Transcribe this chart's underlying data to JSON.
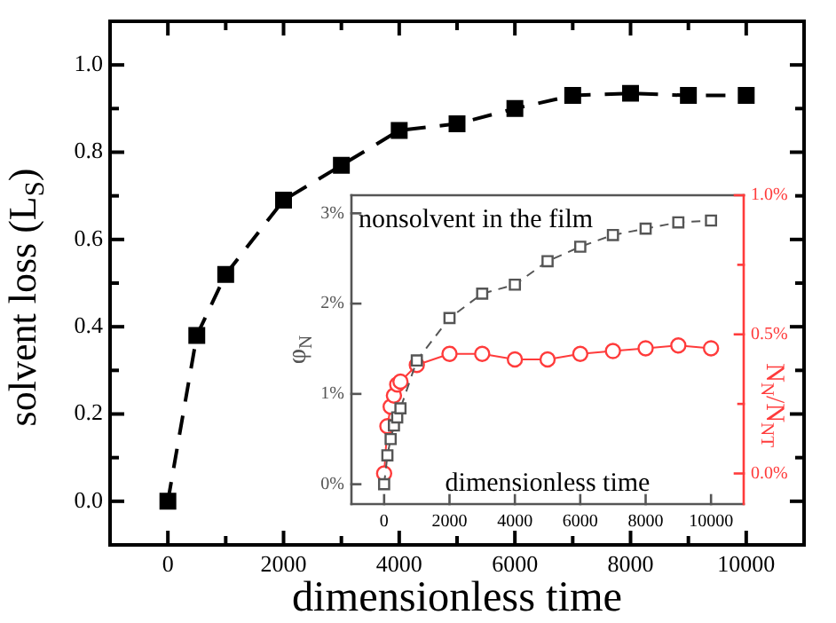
{
  "chart_data": [
    {
      "type": "line",
      "xlabel": "dimensionless time",
      "ylabel": "solvent loss (L$_{S}$)",
      "x": [
        0,
        500,
        1000,
        2000,
        3000,
        4000,
        5000,
        6000,
        7000,
        8000,
        9000,
        10000
      ],
      "series": [
        {
          "color": "#000000",
          "values": [
            0,
            0.38,
            0.52,
            0.69,
            0.77,
            0.85,
            0.865,
            0.9,
            0.93,
            0.935,
            0.93,
            0.93
          ]
        }
      ],
      "xlim": [
        -1000,
        11000
      ],
      "xticks": [
        0,
        {
          "value": 1000,
          "label": null
        },
        2000,
        {
          "value": 3000,
          "label": null
        },
        4000,
        {
          "value": 5000,
          "label": null
        },
        6000,
        {
          "value": 7000,
          "label": null
        },
        8000,
        {
          "value": 9000,
          "label": null
        },
        10000
      ],
      "ylim": [
        -0.1,
        1.1
      ],
      "yticks": [
        {
          "value": 0,
          "label": "0.0"
        },
        {
          "value": 0.1,
          "label": null
        },
        0.2,
        {
          "value": 0.3,
          "label": null
        },
        0.4,
        {
          "value": 0.5,
          "label": null
        },
        0.6,
        {
          "value": 0.7,
          "label": null
        },
        0.8,
        {
          "value": 0.9,
          "label": null
        },
        {
          "value": 1,
          "label": "1.0"
        }
      ],
      "grid": false,
      "legend": false,
      "marker": "square",
      "line_style": "dashed"
    },
    {
      "type": "line",
      "xlabel": "dimensionless time",
      "ylabel": "φ$_{N}$",
      "y2label": "N$_{N}$/N$_{NT}$",
      "annotations": [
        "nonsolvent in the film"
      ],
      "series": [
        {
          "color": "#555555",
          "marker": "square",
          "line_style": "dashed",
          "x": [
            0,
            100,
            200,
            300,
            400,
            500,
            1000,
            2000,
            3000,
            4000,
            5000,
            6000,
            7000,
            8000,
            9000,
            10000
          ],
          "values": [
            0,
            0.32,
            0.5,
            0.65,
            0.74,
            0.84,
            1.37,
            1.84,
            2.11,
            2.21,
            2.47,
            2.63,
            2.76,
            2.83,
            2.9,
            2.92
          ]
        },
        {
          "color": "#ff3b3b",
          "marker": "circle",
          "line_style": "solid",
          "axis": "y2",
          "x": [
            0,
            100,
            200,
            300,
            400,
            500,
            1000,
            2000,
            3000,
            4000,
            5000,
            6000,
            7000,
            8000,
            9000,
            10000
          ],
          "values": [
            0,
            0.17,
            0.24,
            0.28,
            0.32,
            0.33,
            0.39,
            0.43,
            0.43,
            0.41,
            0.41,
            0.43,
            0.44,
            0.45,
            0.46,
            0.45
          ]
        }
      ],
      "xlim": [
        -1000,
        11000
      ],
      "xticks": [
        0,
        2000,
        4000,
        6000,
        8000,
        10000
      ],
      "ylim": [
        -0.22,
        3.2
      ],
      "yticks": [
        {
          "value": 0,
          "label": "0%"
        },
        {
          "value": 1,
          "label": "1%"
        },
        {
          "value": 2,
          "label": "2%"
        },
        {
          "value": 3,
          "label": "3%"
        }
      ],
      "y2lim": [
        -0.11,
        1.0
      ],
      "y2ticks": [
        {
          "value": 0,
          "label": "0.0%"
        },
        {
          "value": 0.25,
          "label": null
        },
        {
          "value": 0.5,
          "label": "0.5%"
        },
        {
          "value": 0.75,
          "label": null
        },
        {
          "value": 1,
          "label": "1.0%"
        }
      ],
      "grid": false,
      "legend": false
    }
  ]
}
